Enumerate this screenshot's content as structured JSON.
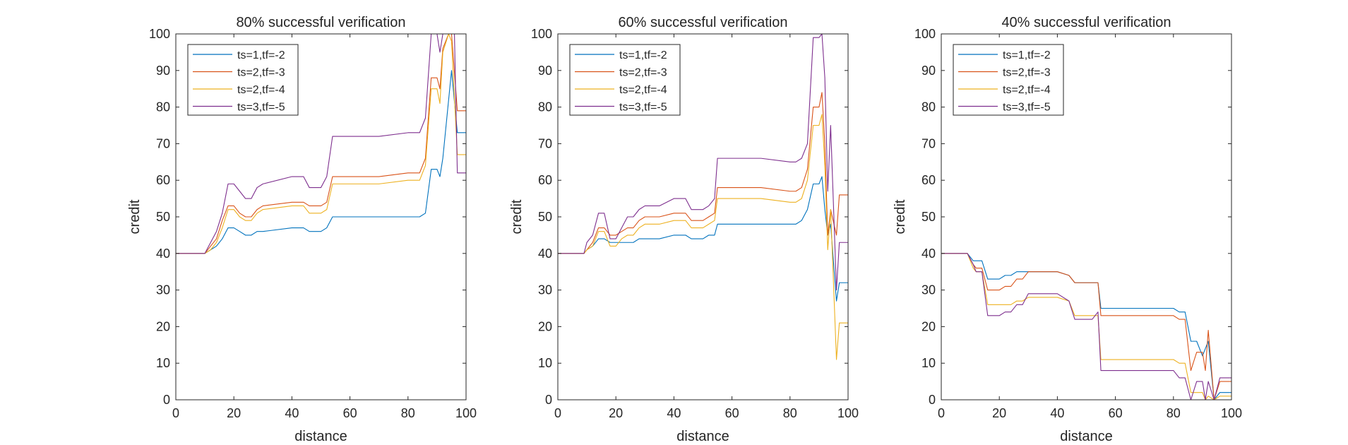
{
  "chart_data": [
    {
      "type": "line",
      "title": "80% successful verification",
      "xlabel": "distance",
      "ylabel": "credit",
      "xlim": [
        0,
        100
      ],
      "ylim": [
        0,
        100
      ],
      "xticks": [
        "0",
        "20",
        "40",
        "60",
        "80",
        "100"
      ],
      "yticks": [
        "0",
        "10",
        "20",
        "30",
        "40",
        "50",
        "60",
        "70",
        "80",
        "90",
        "100"
      ],
      "legend": "top-left",
      "series": [
        {
          "name": "ts=1,tf=-2",
          "color": "#0072BD",
          "x": [
            0,
            10,
            12,
            14,
            16,
            18,
            20,
            22,
            24,
            26,
            28,
            30,
            40,
            44,
            46,
            50,
            52,
            54,
            56,
            60,
            70,
            80,
            84,
            86,
            88,
            90,
            91,
            92,
            95,
            97,
            100
          ],
          "y": [
            40,
            40,
            41,
            42,
            44,
            47,
            47,
            46,
            45,
            45,
            46,
            46,
            47,
            47,
            46,
            46,
            47,
            50,
            50,
            50,
            50,
            50,
            50,
            51,
            63,
            63,
            61,
            66,
            90,
            73,
            73
          ]
        },
        {
          "name": "ts=2,tf=-3",
          "color": "#D95319",
          "x": [
            0,
            10,
            12,
            14,
            16,
            18,
            20,
            22,
            24,
            26,
            28,
            30,
            40,
            44,
            46,
            50,
            52,
            54,
            56,
            60,
            70,
            80,
            84,
            86,
            88,
            90,
            91,
            92,
            94,
            95,
            97,
            100
          ],
          "y": [
            40,
            40,
            42,
            44,
            49,
            53,
            53,
            51,
            50,
            50,
            52,
            53,
            54,
            54,
            53,
            53,
            54,
            61,
            61,
            61,
            61,
            62,
            62,
            66,
            88,
            88,
            85,
            96,
            100,
            100,
            79,
            79
          ]
        },
        {
          "name": "ts=2,tf=-4",
          "color": "#EDB120",
          "x": [
            0,
            10,
            12,
            14,
            16,
            18,
            20,
            22,
            24,
            26,
            28,
            30,
            40,
            44,
            46,
            50,
            52,
            54,
            56,
            60,
            70,
            80,
            84,
            86,
            88,
            90,
            91,
            92,
            94,
            95,
            97,
            100
          ],
          "y": [
            40,
            40,
            41,
            43,
            47,
            52,
            52,
            50,
            49,
            49,
            51,
            52,
            53,
            53,
            51,
            51,
            52,
            59,
            59,
            59,
            59,
            60,
            60,
            64,
            85,
            85,
            81,
            95,
            100,
            98,
            67,
            67
          ]
        },
        {
          "name": "ts=3,tf=-5",
          "color": "#7E2F8E",
          "x": [
            0,
            10,
            12,
            14,
            16,
            18,
            20,
            22,
            24,
            26,
            28,
            30,
            40,
            44,
            46,
            50,
            52,
            54,
            56,
            60,
            70,
            80,
            84,
            86,
            88,
            90,
            91,
            92,
            94,
            96,
            97,
            100
          ],
          "y": [
            40,
            40,
            43,
            46,
            51,
            59,
            59,
            57,
            55,
            55,
            58,
            59,
            61,
            61,
            58,
            58,
            61,
            72,
            72,
            72,
            72,
            73,
            73,
            77,
            100,
            100,
            95,
            100,
            100,
            100,
            62,
            62
          ]
        }
      ]
    },
    {
      "type": "line",
      "title": "60% successful verification",
      "xlabel": "distance",
      "ylabel": "credit",
      "xlim": [
        0,
        100
      ],
      "ylim": [
        0,
        100
      ],
      "xticks": [
        "0",
        "20",
        "40",
        "60",
        "80",
        "100"
      ],
      "yticks": [
        "0",
        "10",
        "20",
        "30",
        "40",
        "50",
        "60",
        "70",
        "80",
        "90",
        "100"
      ],
      "legend": "top-left",
      "series": [
        {
          "name": "ts=1,tf=-2",
          "color": "#0072BD",
          "x": [
            0,
            9,
            10,
            12,
            14,
            16,
            18,
            20,
            22,
            24,
            26,
            28,
            30,
            35,
            40,
            44,
            46,
            50,
            52,
            54,
            55,
            60,
            70,
            80,
            82,
            84,
            86,
            88,
            90,
            91,
            92,
            93,
            94,
            96,
            97,
            100
          ],
          "y": [
            40,
            40,
            41,
            42,
            44,
            44,
            43,
            43,
            43,
            43,
            43,
            44,
            44,
            44,
            45,
            45,
            44,
            44,
            45,
            45,
            48,
            48,
            48,
            48,
            48,
            49,
            52,
            59,
            59,
            61,
            52,
            45,
            48,
            27,
            32,
            32
          ]
        },
        {
          "name": "ts=2,tf=-3",
          "color": "#D95319",
          "x": [
            0,
            9,
            10,
            12,
            14,
            16,
            18,
            20,
            22,
            24,
            26,
            28,
            30,
            35,
            40,
            44,
            46,
            50,
            52,
            54,
            55,
            60,
            70,
            80,
            82,
            84,
            86,
            88,
            90,
            91,
            92,
            93,
            94,
            96,
            97,
            100
          ],
          "y": [
            40,
            40,
            41,
            43,
            47,
            47,
            45,
            45,
            46,
            47,
            47,
            49,
            50,
            50,
            51,
            51,
            49,
            49,
            50,
            51,
            58,
            58,
            58,
            57,
            57,
            58,
            63,
            80,
            80,
            84,
            70,
            45,
            52,
            45,
            56,
            56
          ]
        },
        {
          "name": "ts=2,tf=-4",
          "color": "#EDB120",
          "x": [
            0,
            9,
            10,
            12,
            14,
            16,
            18,
            20,
            22,
            24,
            26,
            28,
            30,
            35,
            40,
            44,
            46,
            50,
            52,
            54,
            55,
            60,
            70,
            80,
            82,
            84,
            86,
            88,
            90,
            91,
            92,
            93,
            94,
            96,
            97,
            100
          ],
          "y": [
            40,
            40,
            41,
            42,
            46,
            46,
            42,
            42,
            44,
            45,
            45,
            47,
            48,
            48,
            49,
            49,
            47,
            47,
            48,
            49,
            55,
            55,
            55,
            54,
            54,
            55,
            60,
            75,
            75,
            78,
            64,
            41,
            52,
            11,
            21,
            21
          ]
        },
        {
          "name": "ts=3,tf=-5",
          "color": "#7E2F8E",
          "x": [
            0,
            9,
            10,
            12,
            14,
            16,
            18,
            20,
            22,
            24,
            26,
            28,
            30,
            35,
            40,
            44,
            46,
            50,
            52,
            54,
            55,
            60,
            70,
            80,
            82,
            84,
            86,
            88,
            90,
            91,
            92,
            93,
            94,
            96,
            97,
            100
          ],
          "y": [
            40,
            40,
            43,
            45,
            51,
            51,
            44,
            44,
            47,
            50,
            50,
            52,
            53,
            53,
            55,
            55,
            52,
            52,
            53,
            55,
            66,
            66,
            66,
            65,
            65,
            66,
            70,
            99,
            99,
            100,
            88,
            57,
            75,
            30,
            43,
            43
          ]
        }
      ]
    },
    {
      "type": "line",
      "title": "40% successful verification",
      "xlabel": "distance",
      "ylabel": "credit",
      "xlim": [
        0,
        100
      ],
      "ylim": [
        0,
        100
      ],
      "xticks": [
        "0",
        "20",
        "40",
        "60",
        "80",
        "100"
      ],
      "yticks": [
        "0",
        "10",
        "20",
        "30",
        "40",
        "50",
        "60",
        "70",
        "80",
        "90",
        "100"
      ],
      "legend": "top-left",
      "series": [
        {
          "name": "ts=1,tf=-2",
          "color": "#0072BD",
          "x": [
            0,
            9,
            11,
            12,
            14,
            16,
            20,
            22,
            24,
            26,
            28,
            30,
            40,
            44,
            46,
            50,
            52,
            54,
            55,
            60,
            70,
            80,
            82,
            84,
            86,
            88,
            90,
            91,
            92,
            94,
            96,
            97,
            100
          ],
          "y": [
            40,
            40,
            38,
            38,
            38,
            33,
            33,
            34,
            34,
            35,
            35,
            35,
            35,
            34,
            32,
            32,
            32,
            32,
            25,
            25,
            25,
            25,
            24,
            24,
            16,
            16,
            12,
            14,
            16,
            0,
            2,
            2,
            2
          ]
        },
        {
          "name": "ts=2,tf=-3",
          "color": "#D95319",
          "x": [
            0,
            9,
            11,
            12,
            14,
            16,
            20,
            22,
            24,
            26,
            28,
            30,
            40,
            44,
            46,
            50,
            52,
            54,
            55,
            60,
            70,
            80,
            82,
            84,
            86,
            88,
            90,
            91,
            92,
            94,
            96,
            97,
            100
          ],
          "y": [
            40,
            40,
            37,
            36,
            36,
            30,
            30,
            31,
            31,
            33,
            33,
            35,
            35,
            34,
            32,
            32,
            32,
            32,
            23,
            23,
            23,
            23,
            22,
            22,
            8,
            13,
            13,
            8,
            19,
            0,
            5,
            5,
            5
          ]
        },
        {
          "name": "ts=2,tf=-4",
          "color": "#EDB120",
          "x": [
            0,
            9,
            11,
            12,
            14,
            16,
            20,
            22,
            24,
            26,
            28,
            30,
            40,
            44,
            46,
            50,
            52,
            54,
            55,
            60,
            70,
            80,
            82,
            84,
            86,
            88,
            90,
            91,
            92,
            94,
            96,
            97,
            100
          ],
          "y": [
            40,
            40,
            36,
            35,
            35,
            26,
            26,
            26,
            26,
            27,
            27,
            28,
            28,
            27,
            23,
            23,
            23,
            23,
            11,
            11,
            11,
            11,
            10,
            10,
            2,
            2,
            2,
            0,
            1,
            0,
            1,
            1,
            1
          ]
        },
        {
          "name": "ts=3,tf=-5",
          "color": "#7E2F8E",
          "x": [
            0,
            9,
            11,
            12,
            14,
            16,
            20,
            22,
            24,
            26,
            28,
            30,
            40,
            44,
            46,
            50,
            52,
            54,
            55,
            60,
            70,
            80,
            82,
            84,
            86,
            88,
            90,
            91,
            92,
            94,
            96,
            97,
            100
          ],
          "y": [
            40,
            40,
            37,
            35,
            35,
            23,
            23,
            24,
            24,
            26,
            26,
            29,
            29,
            27,
            22,
            22,
            22,
            24,
            8,
            8,
            8,
            8,
            6,
            6,
            0,
            5,
            5,
            0,
            5,
            0,
            6,
            6,
            6
          ]
        }
      ]
    }
  ]
}
